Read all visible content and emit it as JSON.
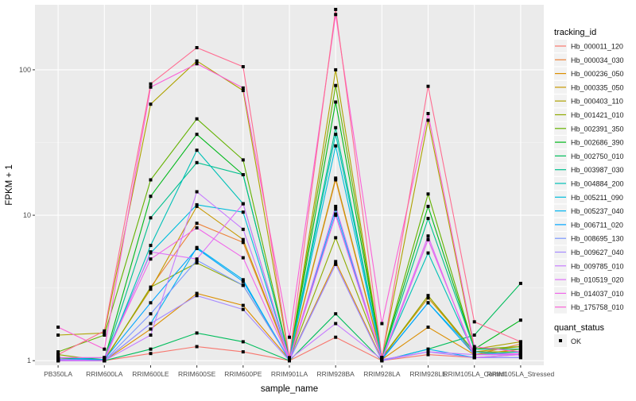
{
  "chart_data": {
    "type": "line",
    "xlabel": "sample_name",
    "ylabel": "FPKM + 1",
    "y_scale": "log10",
    "ylim": [
      0.93,
      280
    ],
    "y_ticks": [
      1,
      10,
      100
    ],
    "y_tick_labels": [
      "1",
      "10",
      "100"
    ],
    "categories": [
      "PB350LA",
      "RRIM600LA",
      "RRIM600LE",
      "RRIM600SE",
      "RRIM600PE",
      "RRIM901LA",
      "RRIM928BA",
      "RRIM928LA",
      "RRIM928LE",
      "RRIM105LA_Control",
      "RRIM105LA_Stressed"
    ],
    "grid": true,
    "legend_placement": "right",
    "legend_title": "tracking_id",
    "legend2_title": "quant_status",
    "legend2_label": "OK",
    "series": [
      {
        "name": "Hb_000011_120",
        "color": "#F8766D",
        "values": [
          1.0,
          1.0,
          1.12,
          1.25,
          1.15,
          1.0,
          1.45,
          1.0,
          1.1,
          1.05,
          1.1
        ]
      },
      {
        "name": "Hb_000034_030",
        "color": "#EC8239",
        "values": [
          1.02,
          1.0,
          3.2,
          8.8,
          6.5,
          1.02,
          17.5,
          1.03,
          2.8,
          1.1,
          1.3
        ]
      },
      {
        "name": "Hb_000236_050",
        "color": "#DB8E00",
        "values": [
          1.05,
          1.0,
          1.65,
          2.9,
          2.4,
          1.02,
          4.8,
          1.02,
          1.7,
          1.1,
          1.2
        ]
      },
      {
        "name": "Hb_000335_050",
        "color": "#C79800",
        "values": [
          1.05,
          1.02,
          3.1,
          11.5,
          6.8,
          1.03,
          18.0,
          1.05,
          2.7,
          1.15,
          1.25
        ]
      },
      {
        "name": "Hb_000403_110",
        "color": "#AEA200",
        "values": [
          1.5,
          1.55,
          58.0,
          115.0,
          72.0,
          1.03,
          100.0,
          1.05,
          45.0,
          1.2,
          1.35
        ]
      },
      {
        "name": "Hb_001421_010",
        "color": "#8FAA00",
        "values": [
          1.1,
          1.0,
          3.2,
          4.7,
          3.3,
          1.02,
          7.0,
          1.05,
          2.8,
          1.15,
          1.15
        ]
      },
      {
        "name": "Hb_002391_350",
        "color": "#64B200",
        "values": [
          1.15,
          1.5,
          17.5,
          46.0,
          24.0,
          1.03,
          78.0,
          1.05,
          14.0,
          1.2,
          1.25
        ]
      },
      {
        "name": "Hb_002686_390",
        "color": "#00B81B",
        "values": [
          1.05,
          1.02,
          13.5,
          36.0,
          19.0,
          1.03,
          60.0,
          1.05,
          11.5,
          1.2,
          1.9
        ]
      },
      {
        "name": "Hb_002750_010",
        "color": "#00BD5C",
        "values": [
          1.0,
          1.0,
          1.2,
          1.55,
          1.35,
          1.0,
          2.1,
          1.0,
          1.2,
          1.5,
          3.4
        ]
      },
      {
        "name": "Hb_003987_030",
        "color": "#00C08E",
        "values": [
          1.02,
          1.0,
          9.6,
          23.0,
          19.0,
          1.03,
          40.0,
          1.04,
          9.5,
          1.2,
          1.2
        ]
      },
      {
        "name": "Hb_004884_200",
        "color": "#00C1B7",
        "values": [
          1.03,
          1.0,
          6.2,
          28.0,
          12.0,
          1.02,
          36.0,
          1.04,
          5.5,
          1.1,
          1.15
        ]
      },
      {
        "name": "Hb_005211_090",
        "color": "#00BDDC",
        "values": [
          1.02,
          1.05,
          5.5,
          11.8,
          10.5,
          1.02,
          30.0,
          1.03,
          2.5,
          1.15,
          1.1
        ]
      },
      {
        "name": "Hb_005237_040",
        "color": "#00B4F0",
        "values": [
          1.0,
          1.0,
          1.8,
          6.0,
          3.6,
          1.0,
          11.0,
          1.0,
          1.2,
          1.05,
          1.05
        ]
      },
      {
        "name": "Hb_006711_020",
        "color": "#00A5FF",
        "values": [
          1.02,
          1.02,
          2.5,
          5.9,
          3.5,
          1.02,
          10.2,
          1.02,
          2.5,
          1.1,
          1.1
        ]
      },
      {
        "name": "Hb_008695_130",
        "color": "#7997FF",
        "values": [
          1.0,
          1.0,
          2.1,
          4.9,
          3.3,
          1.02,
          4.6,
          1.0,
          6.8,
          1.1,
          1.1
        ]
      },
      {
        "name": "Hb_009627_040",
        "color": "#A58AFF",
        "values": [
          1.0,
          1.0,
          1.8,
          2.8,
          2.25,
          1.0,
          4.6,
          1.0,
          1.15,
          1.05,
          1.05
        ]
      },
      {
        "name": "Hb_009785_010",
        "color": "#C77CFF",
        "values": [
          1.02,
          1.0,
          1.5,
          14.5,
          8.0,
          1.02,
          1.8,
          1.02,
          1.15,
          1.1,
          1.1
        ]
      },
      {
        "name": "Hb_010519_020",
        "color": "#DF70F8",
        "values": [
          1.0,
          1.0,
          5.6,
          5.0,
          12.0,
          1.02,
          11.5,
          1.02,
          7.2,
          1.05,
          1.1
        ]
      },
      {
        "name": "Hb_014037_010",
        "color": "#F066EA",
        "values": [
          1.05,
          1.05,
          5.0,
          8.2,
          5.1,
          1.02,
          10.0,
          1.02,
          6.8,
          1.1,
          1.12
        ]
      },
      {
        "name": "Hb_175758_010",
        "color": "#FB61D7",
        "values": [
          1.7,
          1.2,
          76.0,
          110.0,
          75.0,
          1.45,
          240.0,
          1.8,
          50.0,
          1.25,
          1.15
        ]
      },
      {
        "name": "",
        "color": "#FF6C91",
        "values": [
          1.1,
          1.6,
          80.0,
          142.0,
          105.0,
          1.05,
          260.0,
          1.05,
          77.0,
          1.85,
          1.35
        ]
      }
    ]
  }
}
